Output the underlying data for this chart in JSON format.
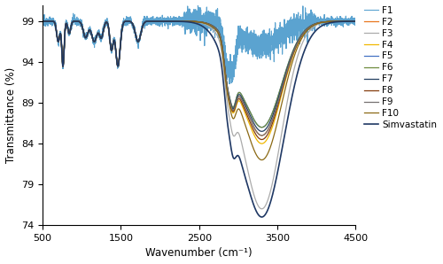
{
  "title": "",
  "xlabel": "Wavenumber (cm⁻¹)",
  "ylabel": "Transmittance (%)",
  "xlim": [
    500,
    4500
  ],
  "ylim": [
    74,
    101
  ],
  "yticks": [
    74,
    79,
    84,
    89,
    94,
    99
  ],
  "xticks": [
    500,
    1500,
    2500,
    3500,
    4500
  ],
  "series": [
    {
      "label": "F1",
      "color": "#5BA3D0",
      "lw": 0.8
    },
    {
      "label": "F2",
      "color": "#E8761E",
      "lw": 0.9
    },
    {
      "label": "F3",
      "color": "#ABABAB",
      "lw": 0.9
    },
    {
      "label": "F4",
      "color": "#F0B800",
      "lw": 0.9
    },
    {
      "label": "F5",
      "color": "#4472C4",
      "lw": 0.9
    },
    {
      "label": "F6",
      "color": "#6E8B3D",
      "lw": 0.9
    },
    {
      "label": "F7",
      "color": "#243F60",
      "lw": 0.9
    },
    {
      "label": "F8",
      "color": "#843C0C",
      "lw": 0.9
    },
    {
      "label": "F9",
      "color": "#767171",
      "lw": 0.9
    },
    {
      "label": "F10",
      "color": "#8B6914",
      "lw": 0.9
    },
    {
      "label": "Simvastatin",
      "color": "#1F3864",
      "lw": 1.2
    }
  ],
  "background_color": "#ffffff"
}
